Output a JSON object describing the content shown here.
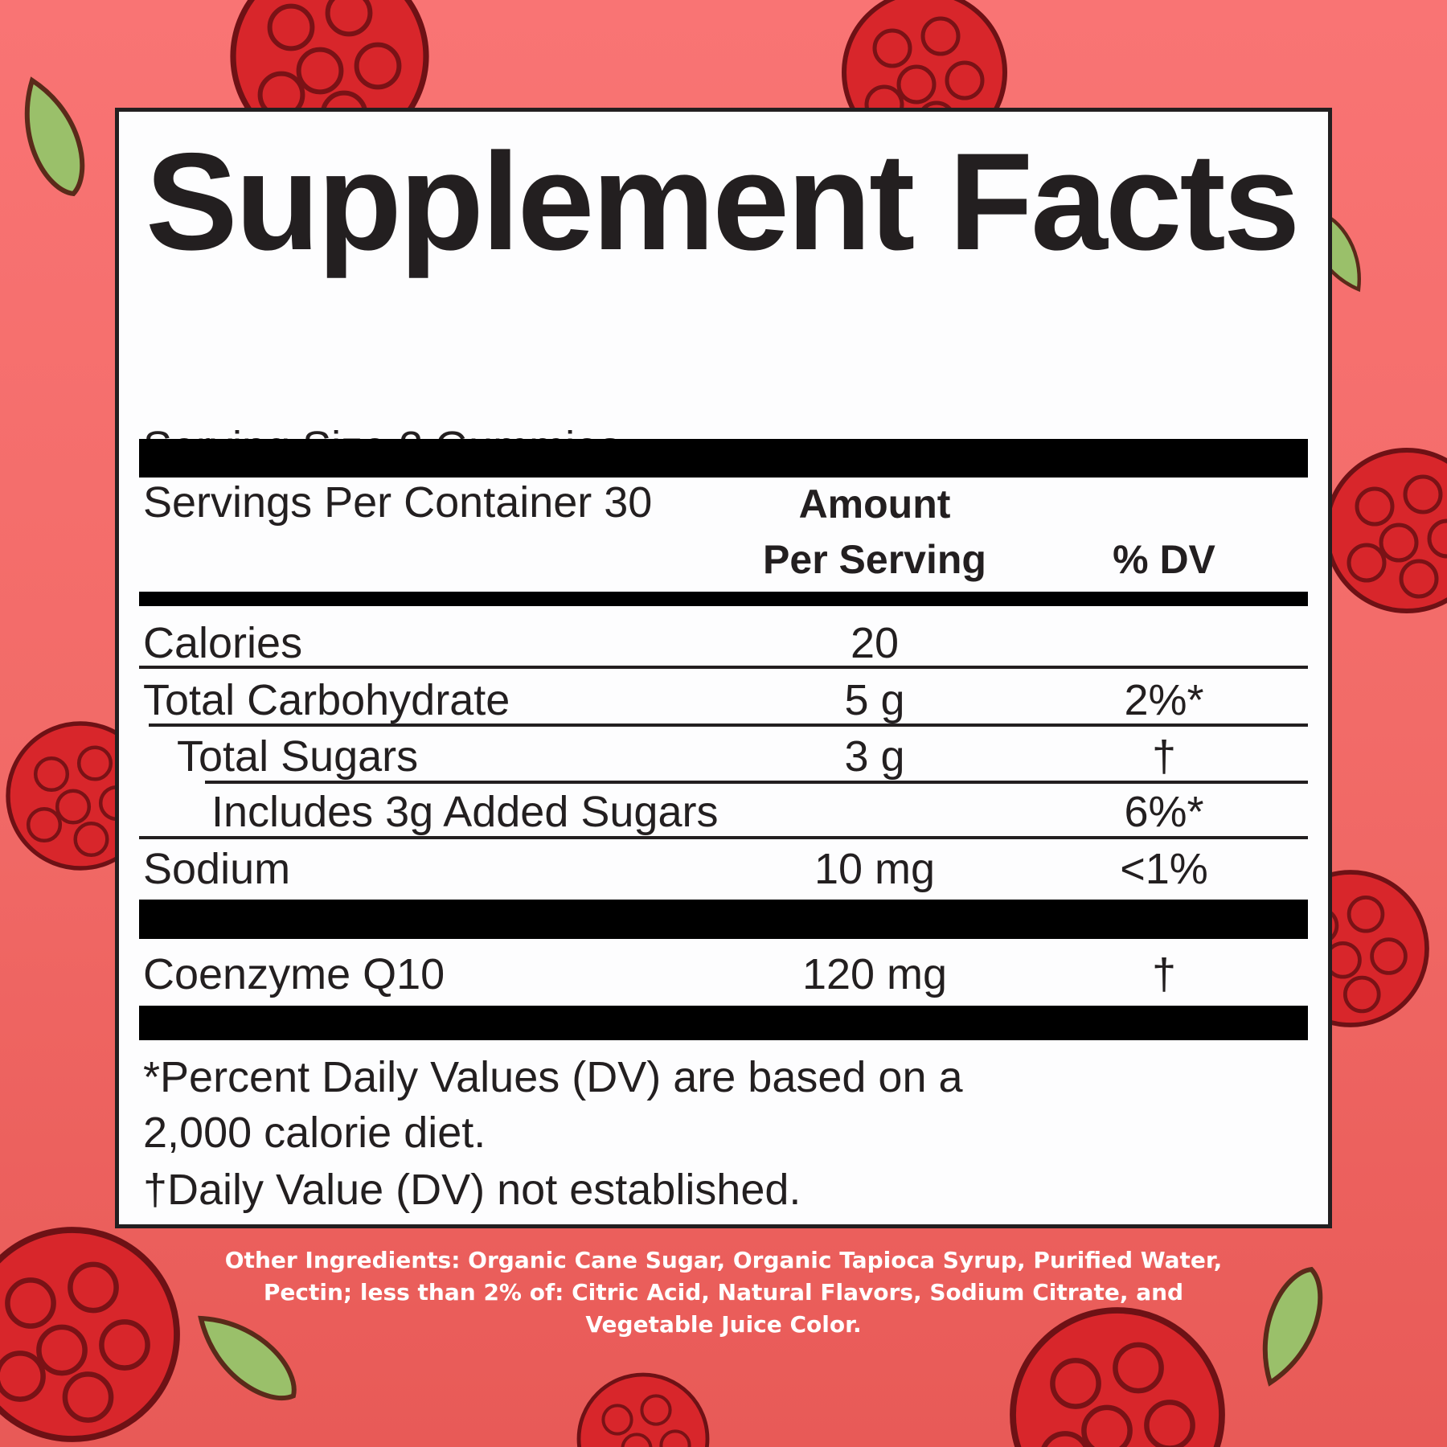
{
  "colors": {
    "background_top": "#f97474",
    "background_bottom": "#e85a57",
    "panel": "#fdfdfe",
    "text": "#231f20",
    "berry": "#d8262b",
    "leaf": "#9ac06a"
  },
  "title": "Supplement Facts",
  "serving_size": "Serving Size 2 Gummies",
  "servings_per_container": "Servings Per Container 30",
  "header": {
    "amount_line1": "Amount",
    "amount_line2": "Per Serving",
    "dv": "% DV"
  },
  "rows": [
    {
      "name": "Calories",
      "amount": "20",
      "dv": ""
    },
    {
      "name": "Total Carbohydrate",
      "amount": "5 g",
      "dv": "2%*"
    },
    {
      "name": "Total Sugars",
      "amount": "3 g",
      "dv": "†"
    },
    {
      "name": "Includes 3g Added Sugars",
      "amount": "",
      "dv": "6%*"
    },
    {
      "name": "Sodium",
      "amount": "10 mg",
      "dv": "<1%"
    },
    {
      "name": "Coenzyme Q10",
      "amount": "120 mg",
      "dv": "†"
    }
  ],
  "footnotes": [
    "*Percent Daily Values (DV) are based on a",
    "2,000 calorie diet.",
    "†Daily Value (DV) not established."
  ],
  "other_ingredients": [
    "Other Ingredients: Organic Cane Sugar, Organic Tapioca Syrup, Purified Water,",
    "Pectin; less than 2% of: Citric Acid, Natural Flavors, Sodium Citrate, and",
    "Vegetable Juice Color."
  ]
}
